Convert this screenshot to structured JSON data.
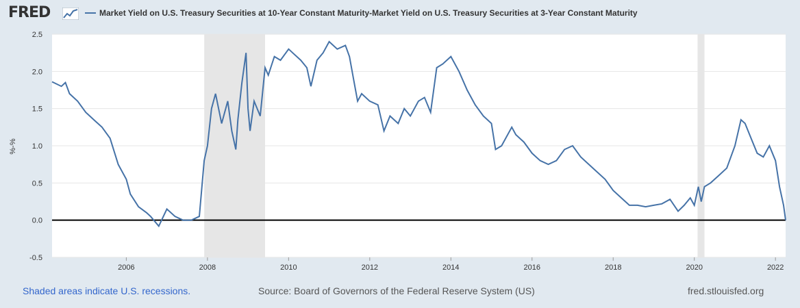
{
  "header": {
    "logo_text": "FRED",
    "logo_icon": "chart-line-icon",
    "title": "Market Yield on U.S. Treasury Securities at 10-Year Constant Maturity-Market Yield on U.S. Treasury Securities at 3-Year Constant Maturity"
  },
  "footer": {
    "recession_note": "Shaded areas indicate U.S. recessions.",
    "source": "Source: Board of Governors of the Federal Reserve System (US)",
    "site": "fred.stlouisfed.org"
  },
  "colors": {
    "series": "#4572a7",
    "recession": "#e6e6e6",
    "background": "#e1e9f0",
    "grid": "#e6e6e6",
    "zero_line": "#000000"
  },
  "chart_data": {
    "type": "line",
    "ylabel": "%-%",
    "ylim": [
      -0.5,
      2.5
    ],
    "yticks": [
      "-0.5",
      "0.0",
      "0.5",
      "1.0",
      "1.5",
      "2.0",
      "2.5"
    ],
    "xlim": [
      2004.17,
      2022.25
    ],
    "xticks": [
      "2006",
      "2008",
      "2010",
      "2012",
      "2014",
      "2016",
      "2018",
      "2020",
      "2022"
    ],
    "grid": true,
    "zero_line": true,
    "recessions": [
      [
        2007.92,
        2009.42
      ],
      [
        2020.08,
        2020.25
      ]
    ],
    "series": [
      {
        "x": [
          2004.17,
          2004.4,
          2004.5,
          2004.6,
          2004.8,
          2005.0,
          2005.2,
          2005.4,
          2005.6,
          2005.8,
          2006.0,
          2006.1,
          2006.3,
          2006.5,
          2006.6,
          2006.8,
          2007.0,
          2007.2,
          2007.4,
          2007.6,
          2007.8,
          2007.92,
          2008.0,
          2008.1,
          2008.2,
          2008.35,
          2008.5,
          2008.6,
          2008.7,
          2008.75,
          2008.85,
          2008.95,
          2009.0,
          2009.05,
          2009.15,
          2009.3,
          2009.42,
          2009.5,
          2009.65,
          2009.8,
          2010.0,
          2010.1,
          2010.3,
          2010.45,
          2010.55,
          2010.7,
          2010.85,
          2011.0,
          2011.2,
          2011.4,
          2011.5,
          2011.6,
          2011.7,
          2011.8,
          2012.0,
          2012.2,
          2012.35,
          2012.5,
          2012.7,
          2012.85,
          2013.0,
          2013.2,
          2013.35,
          2013.5,
          2013.65,
          2013.8,
          2014.0,
          2014.2,
          2014.4,
          2014.6,
          2014.8,
          2015.0,
          2015.1,
          2015.25,
          2015.5,
          2015.6,
          2015.8,
          2016.0,
          2016.2,
          2016.4,
          2016.6,
          2016.8,
          2017.0,
          2017.2,
          2017.5,
          2017.8,
          2018.0,
          2018.2,
          2018.4,
          2018.6,
          2018.8,
          2019.0,
          2019.2,
          2019.4,
          2019.6,
          2019.75,
          2019.9,
          2020.0,
          2020.1,
          2020.17,
          2020.25,
          2020.4,
          2020.6,
          2020.8,
          2021.0,
          2021.15,
          2021.25,
          2021.4,
          2021.55,
          2021.7,
          2021.85,
          2022.0,
          2022.1,
          2022.2,
          2022.25
        ],
        "values": [
          1.86,
          1.8,
          1.85,
          1.7,
          1.6,
          1.45,
          1.35,
          1.25,
          1.1,
          0.75,
          0.55,
          0.35,
          0.18,
          0.1,
          0.05,
          -0.08,
          0.15,
          0.05,
          0.0,
          0.0,
          0.05,
          0.8,
          1.0,
          1.5,
          1.7,
          1.3,
          1.6,
          1.2,
          0.95,
          1.35,
          1.85,
          2.25,
          1.5,
          1.2,
          1.6,
          1.4,
          2.05,
          1.95,
          2.2,
          2.15,
          2.3,
          2.25,
          2.15,
          2.05,
          1.8,
          2.15,
          2.25,
          2.4,
          2.3,
          2.35,
          2.2,
          1.9,
          1.6,
          1.7,
          1.6,
          1.55,
          1.2,
          1.4,
          1.3,
          1.5,
          1.4,
          1.6,
          1.65,
          1.45,
          2.05,
          2.1,
          2.2,
          2.0,
          1.75,
          1.55,
          1.4,
          1.3,
          0.95,
          1.0,
          1.25,
          1.15,
          1.05,
          0.9,
          0.8,
          0.75,
          0.8,
          0.95,
          1.0,
          0.85,
          0.7,
          0.55,
          0.4,
          0.3,
          0.2,
          0.2,
          0.18,
          0.2,
          0.22,
          0.28,
          0.12,
          0.2,
          0.3,
          0.2,
          0.45,
          0.25,
          0.45,
          0.5,
          0.6,
          0.7,
          1.0,
          1.35,
          1.3,
          1.1,
          0.9,
          0.85,
          1.0,
          0.8,
          0.45,
          0.2,
          0.0
        ]
      }
    ]
  }
}
